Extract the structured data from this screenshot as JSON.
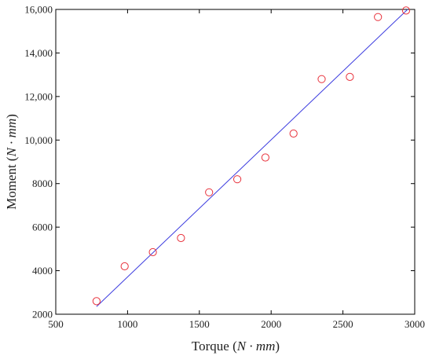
{
  "chart_data": {
    "type": "scatter",
    "title": "",
    "xlabel": {
      "base": "Torque",
      "math": "N · mm"
    },
    "ylabel": {
      "base": "Moment",
      "math": "N · mm"
    },
    "xlim": [
      500,
      3000
    ],
    "ylim": [
      2000,
      16000
    ],
    "xticks": [
      500,
      1000,
      1500,
      2000,
      2500,
      3000
    ],
    "xtick_labels": [
      "500",
      "1000",
      "1500",
      "2000",
      "2500",
      "3000"
    ],
    "yticks": [
      2000,
      4000,
      6000,
      8000,
      10000,
      12000,
      14000,
      16000
    ],
    "ytick_labels": [
      "2000",
      "4000",
      "6000",
      "8000",
      "10,000",
      "12,000",
      "14,000",
      "16,000"
    ],
    "grid": false,
    "legend": "none",
    "series": [
      {
        "kind": "points",
        "marker": "open-circle",
        "color": "#e8323c",
        "points": [
          {
            "x": 784,
            "y": 2600
          },
          {
            "x": 980,
            "y": 4200
          },
          {
            "x": 1176,
            "y": 4850
          },
          {
            "x": 1372,
            "y": 5500
          },
          {
            "x": 1568,
            "y": 7600
          },
          {
            "x": 1764,
            "y": 8200
          },
          {
            "x": 1960,
            "y": 9200
          },
          {
            "x": 2156,
            "y": 10300
          },
          {
            "x": 2352,
            "y": 12800
          },
          {
            "x": 2548,
            "y": 12900
          },
          {
            "x": 2744,
            "y": 15650
          },
          {
            "x": 2940,
            "y": 15950
          }
        ]
      },
      {
        "kind": "fit-line",
        "color": "#3a3adf",
        "points": [
          {
            "x": 784,
            "y": 2350
          },
          {
            "x": 2950,
            "y": 16000
          }
        ]
      }
    ]
  }
}
